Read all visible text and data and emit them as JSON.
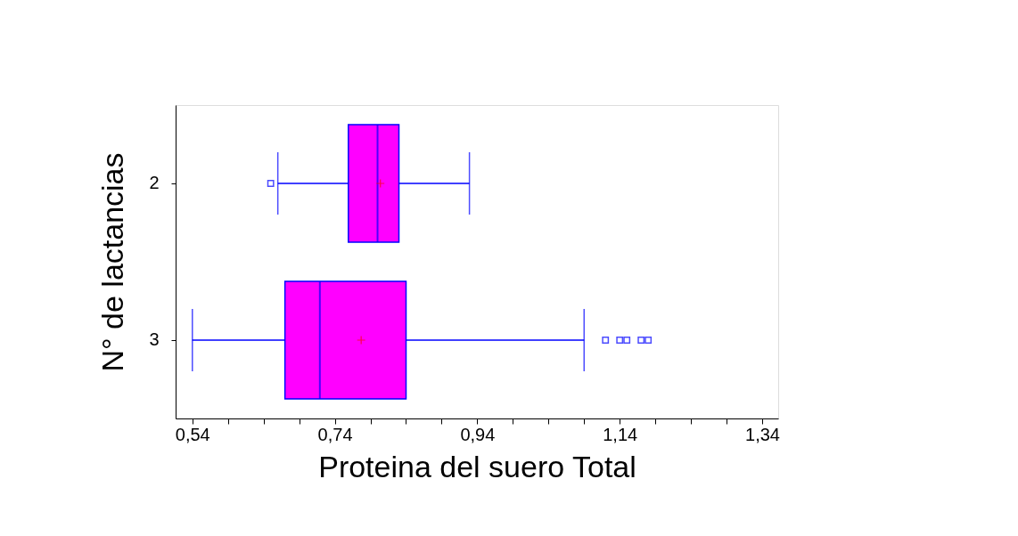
{
  "chart_data": {
    "type": "box",
    "orientation": "horizontal",
    "xlabel": "Proteina del suero Total",
    "ylabel": "N° de lactancias",
    "categories": [
      "2",
      "3"
    ],
    "boxes": [
      {
        "low": 0.66,
        "q1": 0.759,
        "median": 0.8,
        "q3": 0.83,
        "high": 0.929,
        "mean": 0.804,
        "outliers": [
          0.65
        ]
      },
      {
        "low": 0.54,
        "q1": 0.67,
        "median": 0.719,
        "q3": 0.84,
        "high": 1.09,
        "mean": 0.777,
        "outliers": [
          1.12,
          1.14,
          1.15,
          1.17,
          1.18
        ]
      }
    ],
    "color": "#ff00ff",
    "xlim": [
      0.5165,
      1.3625
    ],
    "xticks": [
      {
        "value": 0.54,
        "label": "0,54"
      },
      {
        "value": 0.59,
        "label": null
      },
      {
        "value": 0.64,
        "label": null
      },
      {
        "value": 0.69,
        "label": null
      },
      {
        "value": 0.74,
        "label": "0,74"
      },
      {
        "value": 0.79,
        "label": null
      },
      {
        "value": 0.84,
        "label": null
      },
      {
        "value": 0.89,
        "label": null
      },
      {
        "value": 0.94,
        "label": "0,94"
      },
      {
        "value": 0.99,
        "label": null
      },
      {
        "value": 1.04,
        "label": null
      },
      {
        "value": 1.09,
        "label": null
      },
      {
        "value": 1.14,
        "label": "1,14"
      },
      {
        "value": 1.19,
        "label": null
      },
      {
        "value": 1.24,
        "label": null
      },
      {
        "value": 1.29,
        "label": null
      },
      {
        "value": 1.34,
        "label": "1,34"
      }
    ],
    "grid": false
  }
}
